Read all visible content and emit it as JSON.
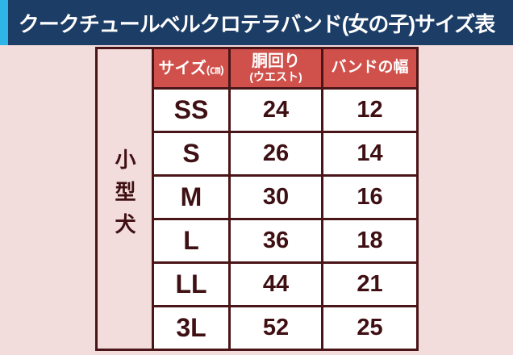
{
  "title": "クークチュールベルクロテラバンド(女の子)サイズ表",
  "table": {
    "category": "小型犬",
    "headers": {
      "size_label": "サイズ",
      "size_unit": "(㎝)",
      "waist_label": "胴回り",
      "waist_sub": "(ウエスト)",
      "band_label": "バンドの幅"
    },
    "rows": [
      {
        "size": "SS",
        "waist": "24",
        "band": "12"
      },
      {
        "size": "S",
        "waist": "26",
        "band": "14"
      },
      {
        "size": "M",
        "waist": "30",
        "band": "16"
      },
      {
        "size": "L",
        "waist": "36",
        "band": "18"
      },
      {
        "size": "LL",
        "waist": "44",
        "band": "21"
      },
      {
        "size": "3L",
        "waist": "52",
        "band": "25"
      }
    ]
  },
  "colors": {
    "page_bg": "#f2dcdc",
    "title_bar_bg": "#1c3d66",
    "title_accent": "#2fb4e8",
    "header_bg": "#d0514b",
    "border": "#4a1518",
    "cell_text": "#3f1013",
    "header_text": "#ffffff"
  },
  "chart_data": {
    "type": "table",
    "title": "クークチュールベルクロテラバンド(女の子)サイズ表",
    "row_group": "小型犬",
    "columns": [
      "サイズ(㎝)",
      "胴回り(ウエスト)",
      "バンドの幅"
    ],
    "rows": [
      [
        "SS",
        24,
        12
      ],
      [
        "S",
        26,
        14
      ],
      [
        "M",
        30,
        16
      ],
      [
        "L",
        36,
        18
      ],
      [
        "LL",
        44,
        21
      ],
      [
        "3L",
        52,
        25
      ]
    ]
  }
}
